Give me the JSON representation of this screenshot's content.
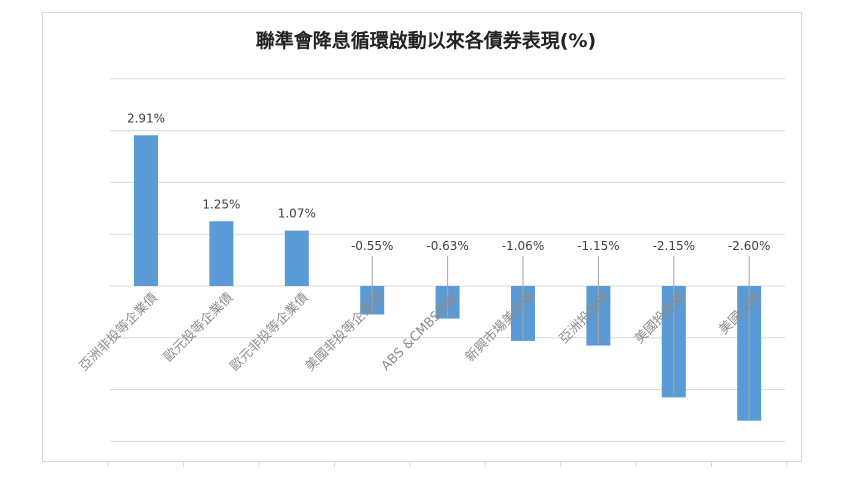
{
  "chart_data": {
    "type": "bar",
    "title": "聯準會降息循環啟動以來各債券表現(%)",
    "categories": [
      "亞洲非投等企業債",
      "歐元投等企業債",
      "歐元非投等企業債",
      "美國非投等企業債",
      "ABS &CMBS指數",
      "新興市場美元債",
      "亞洲投等債",
      "美國投等債",
      "美國公債"
    ],
    "values": [
      2.91,
      1.25,
      1.07,
      -0.55,
      -0.63,
      -1.06,
      -1.15,
      -2.15,
      -2.6
    ],
    "data_labels": [
      "2.91%",
      "1.25%",
      "1.07%",
      "-0.55%",
      "-0.63%",
      "-1.06%",
      "-1.15%",
      "-2.15%",
      "-2.60%"
    ],
    "ylim": [
      -3.0,
      4.0
    ],
    "grid": true,
    "legend": "none",
    "colors": {
      "bar": "#5b9bd5",
      "grid": "#d9d9d9",
      "leader": "#a6a6a6"
    }
  }
}
